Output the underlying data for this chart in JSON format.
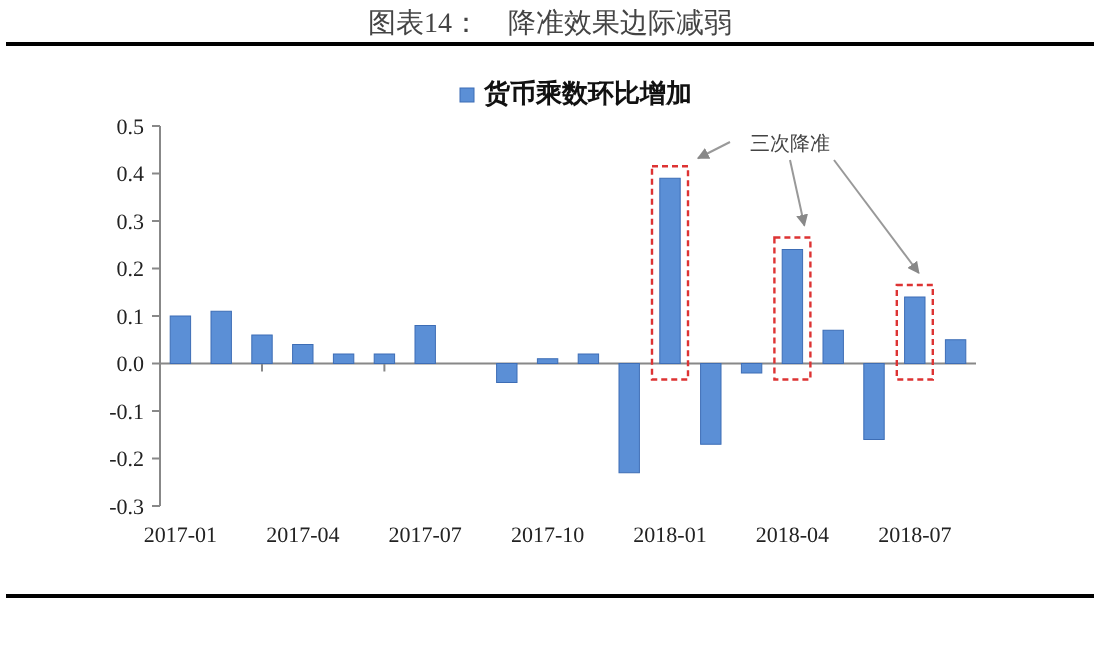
{
  "chart_data": {
    "type": "bar",
    "title": "图表14：    降准效果边际减弱",
    "categories": [
      "2017-01",
      null,
      null,
      "2017-04",
      null,
      null,
      "2017-07",
      null,
      null,
      "2017-10",
      null,
      null,
      "2018-01",
      null,
      null,
      "2018-04",
      null,
      null,
      "2018-07",
      null
    ],
    "series": [
      {
        "name": "货币乘数环比增加",
        "color": "#5b8fd6",
        "values": [
          0.1,
          0.11,
          0.06,
          0.04,
          0.02,
          0.02,
          0.08,
          null,
          -0.04,
          0.01,
          0.02,
          -0.23,
          0.39,
          -0.17,
          -0.02,
          0.24,
          0.07,
          -0.16,
          0.14,
          0.05
        ]
      }
    ],
    "ylim": [
      -0.3,
      0.5
    ],
    "yticks": [
      {
        "value": -0.3,
        "label": "-0.3"
      },
      {
        "value": -0.2,
        "label": "-0.2"
      },
      {
        "value": -0.1,
        "label": "-0.1"
      },
      {
        "value": 0,
        "label": "0.0"
      },
      {
        "value": 0.1,
        "label": "0.1"
      },
      {
        "value": 0.2,
        "label": "0.2"
      },
      {
        "value": 0.3,
        "label": "0.3"
      },
      {
        "value": 0.4,
        "label": "0.4"
      },
      {
        "value": 0.5,
        "label": "0.5"
      }
    ],
    "legend": "top",
    "annotations": [
      "三次降准"
    ]
  }
}
